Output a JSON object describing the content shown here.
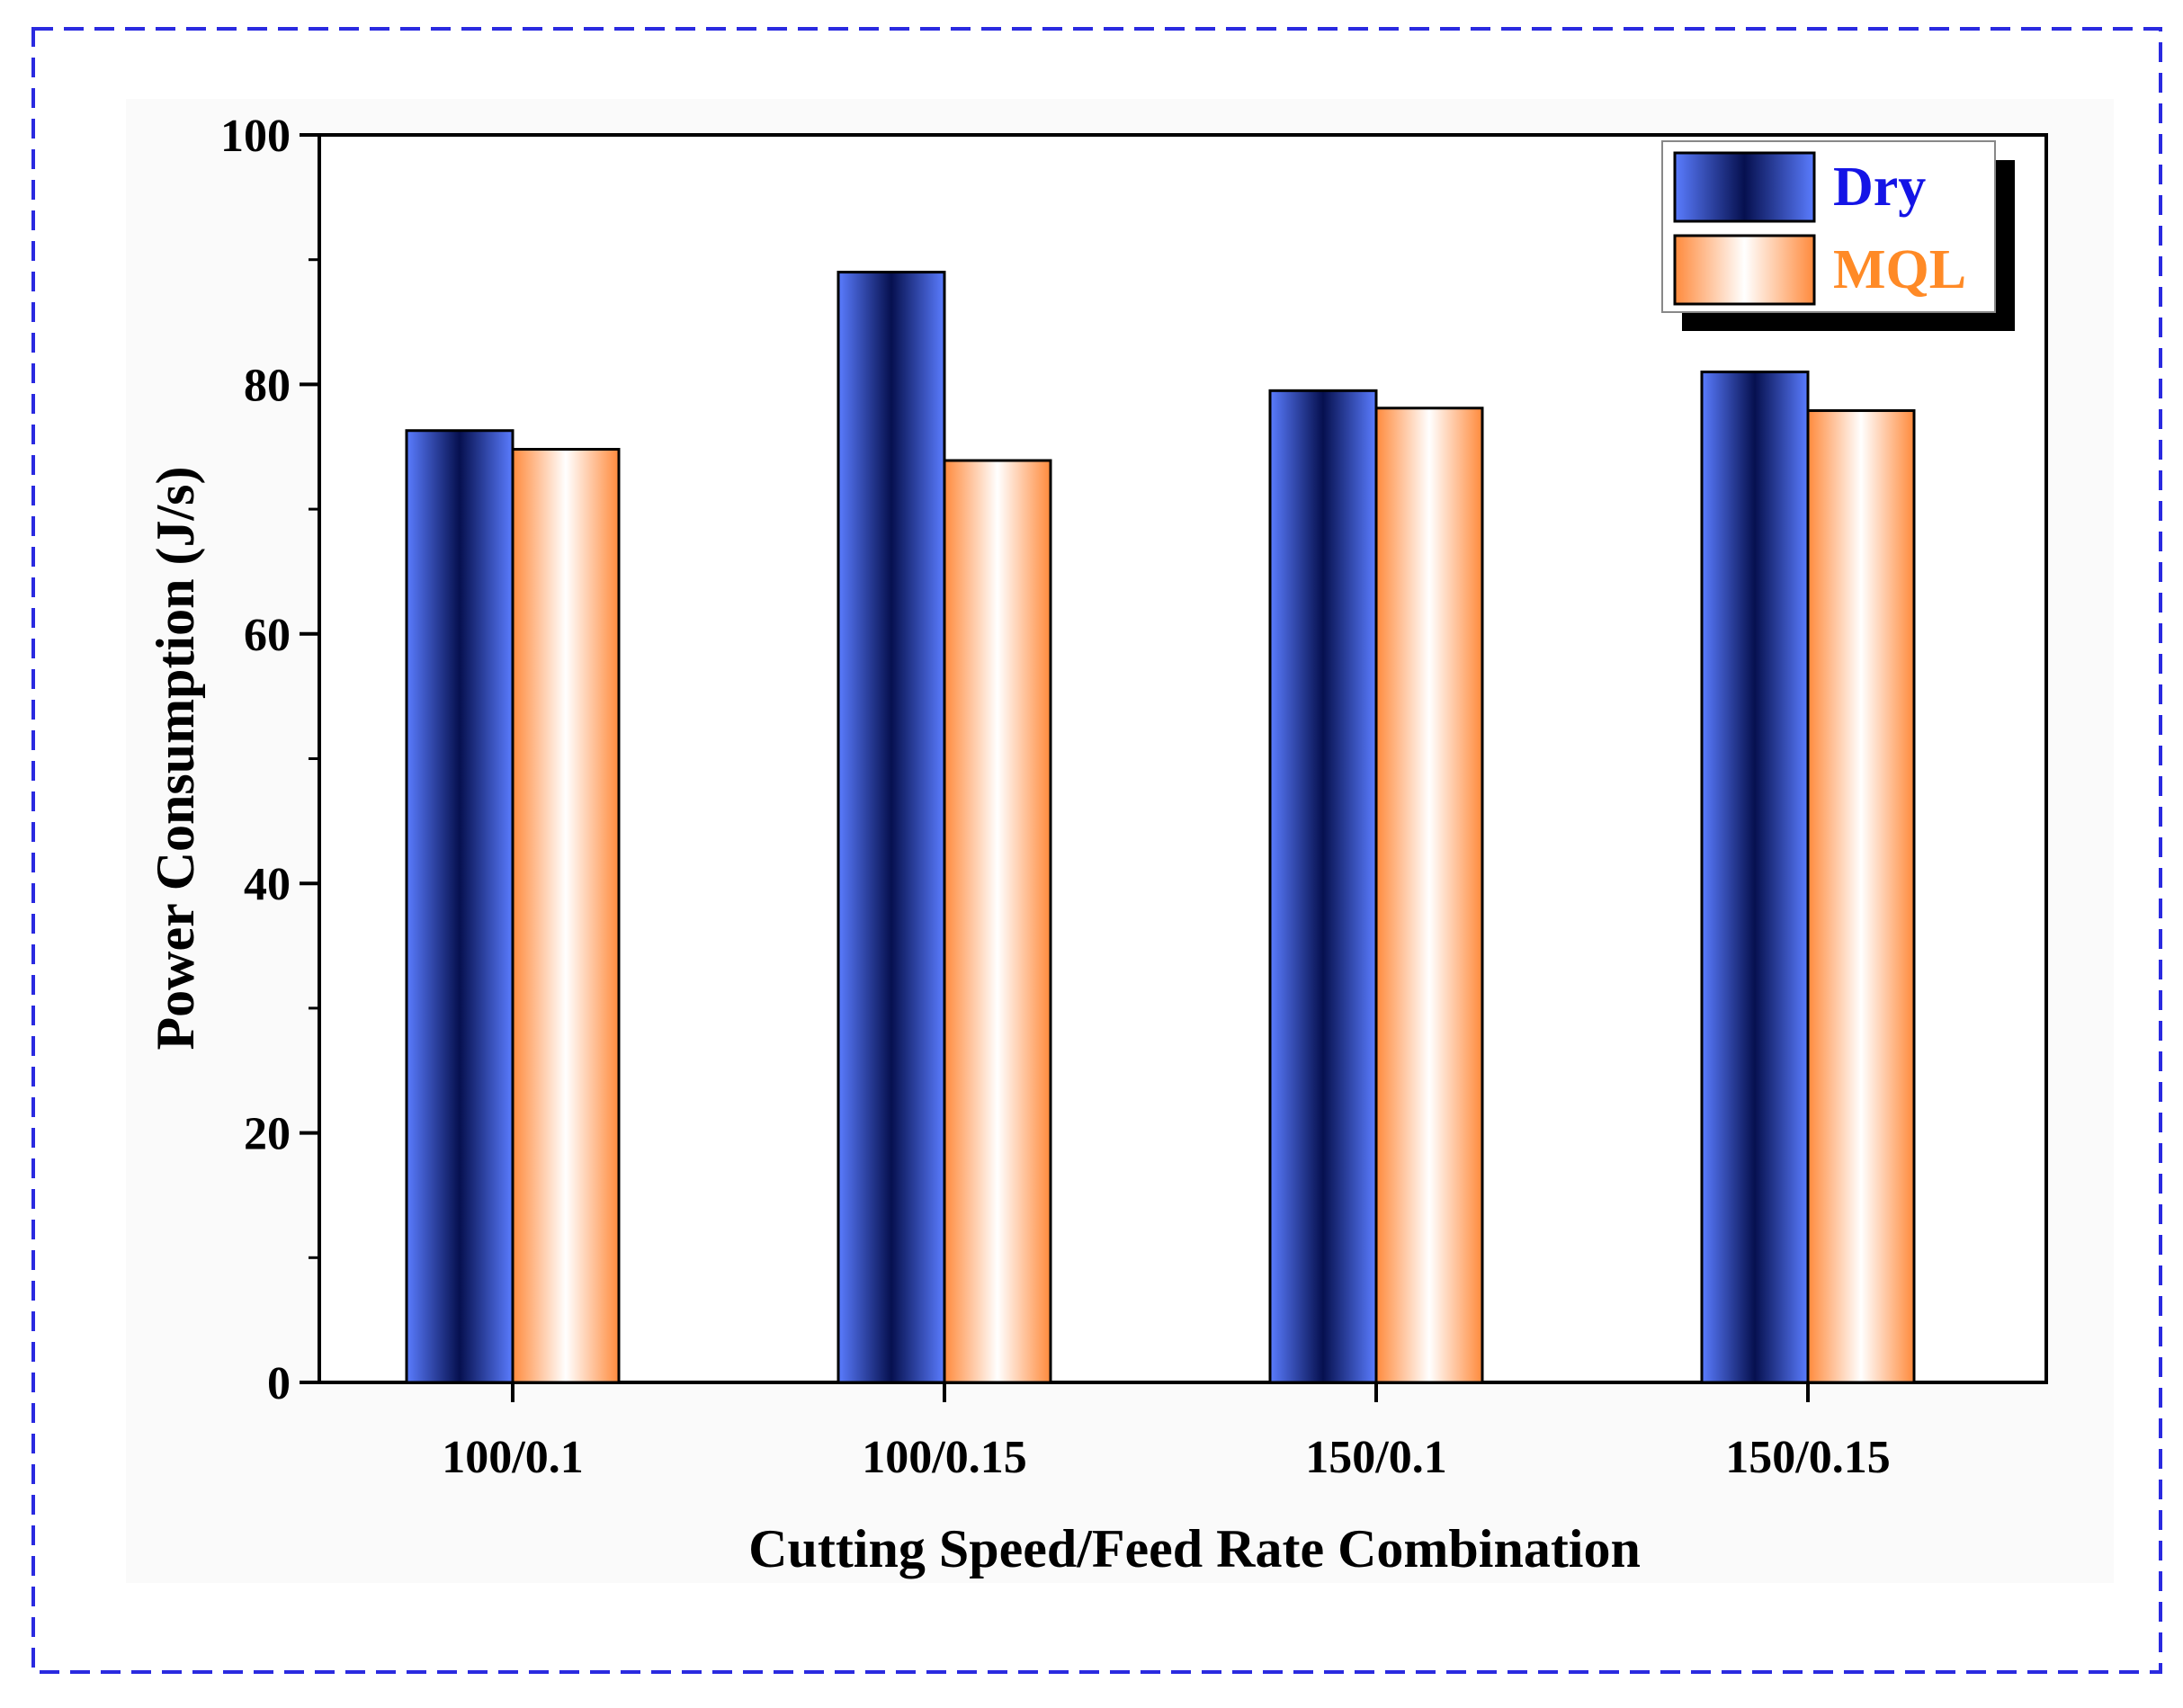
{
  "chart_data": {
    "type": "bar",
    "title": "",
    "xlabel": "Cutting Speed/Feed Rate Combination",
    "ylabel": "Power Consumption (J/s)",
    "categories": [
      "100/0.1",
      "100/0.15",
      "150/0.1",
      "150/0.15"
    ],
    "series": [
      {
        "name": "Dry",
        "values": [
          76.3,
          89.0,
          79.5,
          81.0
        ],
        "color": "#4b6cf5",
        "label_color": "#1414e6"
      },
      {
        "name": "MQL",
        "values": [
          74.8,
          73.9,
          78.1,
          77.9
        ],
        "color": "#ff8a3c",
        "label_color": "#ff8a26"
      }
    ],
    "ylim": [
      0,
      100
    ],
    "yticks": [
      0,
      20,
      40,
      60,
      80,
      100
    ],
    "ytick_labels": [
      "0",
      "20",
      "40",
      "60",
      "80",
      "100"
    ],
    "grid": false,
    "legend_position": "top-right",
    "frame_border_color": "#2a2ae0"
  }
}
